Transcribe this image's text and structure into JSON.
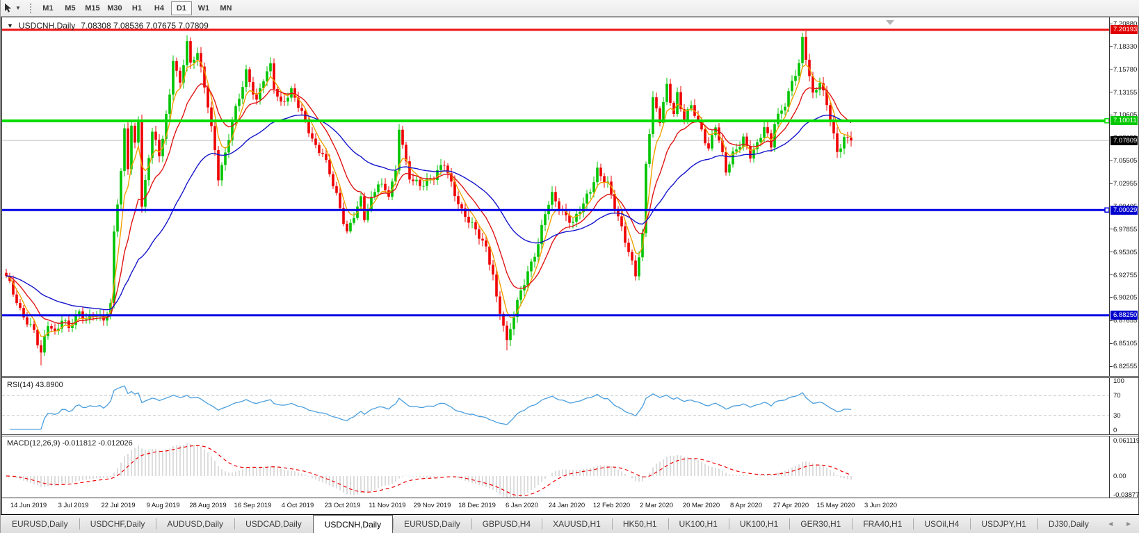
{
  "toolbar": {
    "cursor_tool": "chart-cursor",
    "timeframes": [
      "M1",
      "M5",
      "M15",
      "M30",
      "H1",
      "H4",
      "D1",
      "W1",
      "MN"
    ],
    "active_timeframe": "D1"
  },
  "chart": {
    "menu_glyph": "▼",
    "symbol_label": "USDCNH,Daily",
    "ohlc_line": "7.08308 7.08536 7.07675 7.07809"
  },
  "rsi": {
    "label": "RSI(14) 43.8900",
    "axis_labels": [
      "100",
      "70",
      "30",
      "0"
    ],
    "line_color": "#4a9ede"
  },
  "macd": {
    "label": "MACD(12,26,9) -0.011812 -0.012026",
    "axis_labels": [
      "0.061119",
      "0.00",
      "-0.038777"
    ]
  },
  "tabs": {
    "items": [
      "EURUSD,Daily",
      "USDCHF,Daily",
      "AUDUSD,Daily",
      "USDCAD,Daily",
      "USDCNH,Daily",
      "EURUSD,Daily",
      "GBPUSD,H4",
      "XAUUSD,H1",
      "HK50,H1",
      "UK100,H1",
      "UK100,H1",
      "GER30,H1",
      "FRA40,H1",
      "USOil,H4",
      "USDJPY,H1",
      "DJ30,Daily"
    ],
    "active_index": 4,
    "left_arrow": "◄",
    "right_arrow": "►"
  },
  "chart_data": {
    "type": "candlestick",
    "symbol": "USDCNH",
    "timeframe": "Daily",
    "bars": 244,
    "y_axis_ticks": [
      "7.20880",
      "7.18330",
      "7.15780",
      "7.13155",
      "7.10605",
      "7.08055",
      "7.05505",
      "7.02955",
      "7.00405",
      "6.97855",
      "6.95305",
      "6.92755",
      "6.90205",
      "6.87655",
      "6.85105",
      "6.82555"
    ],
    "x_axis_labels": [
      "14 Jun 2019",
      "3 Jul 2019",
      "22 Jul 2019",
      "9 Aug 2019",
      "28 Aug 2019",
      "16 Sep 2019",
      "4 Oct 2019",
      "23 Oct 2019",
      "11 Nov 2019",
      "29 Nov 2019",
      "18 Dec 2019",
      "6 Jan 2020",
      "24 Jan 2020",
      "12 Feb 2020",
      "2 Mar 2020",
      "20 Mar 2020",
      "8 Apr 2020",
      "27 Apr 2020",
      "15 May 2020",
      "3 Jun 2020"
    ],
    "levels": [
      {
        "label": "7.20193",
        "price": 7.20193,
        "line_color": "#ee1212",
        "badge_color": "#e00000",
        "thickness": 3,
        "handle": false,
        "role": "resistance-line"
      },
      {
        "label": "7.10011",
        "price": 7.10011,
        "line_color": "#00dc00",
        "badge_color": "#00c800",
        "thickness": 4,
        "handle": true,
        "role": "support-resistance-line"
      },
      {
        "label": "7.07809",
        "price": 7.07809,
        "line_color": "#bdbdbd",
        "badge_color": "#000000",
        "thickness": 1,
        "handle": false,
        "role": "current-price-line"
      },
      {
        "label": "7.00029",
        "price": 7.00029,
        "line_color": "#0000e6",
        "badge_color": "#0000cd",
        "thickness": 3,
        "handle": true,
        "role": "support-line"
      },
      {
        "label": "6.88250",
        "price": 6.8825,
        "line_color": "#0000e6",
        "badge_color": "#0000cd",
        "thickness": 3,
        "handle": false,
        "role": "support-line"
      }
    ],
    "close_anchors": [
      [
        0,
        6.925
      ],
      [
        4,
        6.888
      ],
      [
        8,
        6.866
      ],
      [
        10,
        6.838
      ],
      [
        12,
        6.872
      ],
      [
        14,
        6.862
      ],
      [
        16,
        6.88
      ],
      [
        18,
        6.87
      ],
      [
        21,
        6.884
      ],
      [
        23,
        6.876
      ],
      [
        25,
        6.886
      ],
      [
        28,
        6.88
      ],
      [
        30,
        6.892
      ],
      [
        31,
        6.975
      ],
      [
        33,
        7.04
      ],
      [
        34,
        7.09
      ],
      [
        35,
        7.05
      ],
      [
        36,
        7.095
      ],
      [
        37,
        7.075
      ],
      [
        38,
        7.105
      ],
      [
        39,
        7.005
      ],
      [
        40,
        7.03
      ],
      [
        42,
        7.088
      ],
      [
        44,
        7.06
      ],
      [
        47,
        7.13
      ],
      [
        48,
        7.172
      ],
      [
        50,
        7.14
      ],
      [
        52,
        7.188
      ],
      [
        53,
        7.16
      ],
      [
        55,
        7.178
      ],
      [
        58,
        7.12
      ],
      [
        60,
        7.066
      ],
      [
        61,
        7.036
      ],
      [
        63,
        7.06
      ],
      [
        65,
        7.1
      ],
      [
        67,
        7.128
      ],
      [
        69,
        7.156
      ],
      [
        72,
        7.12
      ],
      [
        74,
        7.146
      ],
      [
        76,
        7.162
      ],
      [
        77,
        7.14
      ],
      [
        79,
        7.12
      ],
      [
        82,
        7.132
      ],
      [
        86,
        7.1
      ],
      [
        89,
        7.072
      ],
      [
        91,
        7.064
      ],
      [
        93,
        7.04
      ],
      [
        95,
        7.015
      ],
      [
        98,
        6.976
      ],
      [
        100,
        6.996
      ],
      [
        102,
        7.012
      ],
      [
        103,
        6.99
      ],
      [
        105,
        7.01
      ],
      [
        107,
        7.032
      ],
      [
        110,
        7.02
      ],
      [
        112,
        7.042
      ],
      [
        113,
        7.092
      ],
      [
        115,
        7.05
      ],
      [
        116,
        7.036
      ],
      [
        119,
        7.03
      ],
      [
        123,
        7.036
      ],
      [
        126,
        7.052
      ],
      [
        128,
        7.03
      ],
      [
        131,
        7.0
      ],
      [
        135,
        6.976
      ],
      [
        138,
        6.958
      ],
      [
        140,
        6.93
      ],
      [
        141,
        6.902
      ],
      [
        143,
        6.872
      ],
      [
        144,
        6.85
      ],
      [
        146,
        6.882
      ],
      [
        148,
        6.91
      ],
      [
        150,
        6.932
      ],
      [
        153,
        6.962
      ],
      [
        155,
        6.996
      ],
      [
        157,
        7.016
      ],
      [
        160,
        7.0
      ],
      [
        163,
        6.986
      ],
      [
        166,
        7.006
      ],
      [
        168,
        7.022
      ],
      [
        170,
        7.046
      ],
      [
        173,
        7.03
      ],
      [
        176,
        6.99
      ],
      [
        178,
        6.966
      ],
      [
        180,
        6.942
      ],
      [
        181,
        6.93
      ],
      [
        183,
        6.972
      ],
      [
        184,
        7.052
      ],
      [
        186,
        7.122
      ],
      [
        188,
        7.1
      ],
      [
        190,
        7.14
      ],
      [
        192,
        7.11
      ],
      [
        193,
        7.13
      ],
      [
        195,
        7.1
      ],
      [
        197,
        7.116
      ],
      [
        200,
        7.09
      ],
      [
        202,
        7.07
      ],
      [
        204,
        7.096
      ],
      [
        206,
        7.06
      ],
      [
        207,
        7.042
      ],
      [
        209,
        7.062
      ],
      [
        212,
        7.082
      ],
      [
        214,
        7.062
      ],
      [
        216,
        7.072
      ],
      [
        218,
        7.092
      ],
      [
        220,
        7.072
      ],
      [
        221,
        7.1
      ],
      [
        224,
        7.12
      ],
      [
        226,
        7.142
      ],
      [
        228,
        7.162
      ],
      [
        229,
        7.19
      ],
      [
        231,
        7.152
      ],
      [
        232,
        7.13
      ],
      [
        234,
        7.146
      ],
      [
        237,
        7.102
      ],
      [
        239,
        7.062
      ],
      [
        241,
        7.082
      ],
      [
        243,
        7.078
      ]
    ],
    "spikes": [
      {
        "bar": 10,
        "low": 6.8265
      },
      {
        "bar": 144,
        "low": 6.8432
      },
      {
        "bar": 229,
        "high": 7.1985
      }
    ],
    "up_color": "#00c400",
    "down_color": "#ee0000",
    "ma_fast_color": "#f0a000",
    "ma_mid_color": "#e01414",
    "ma_slow_color": "#1414cc",
    "macd_hist_color": "#bbbbbb",
    "macd_signal_color": "#ee0000",
    "marker_glyph": "▼"
  }
}
